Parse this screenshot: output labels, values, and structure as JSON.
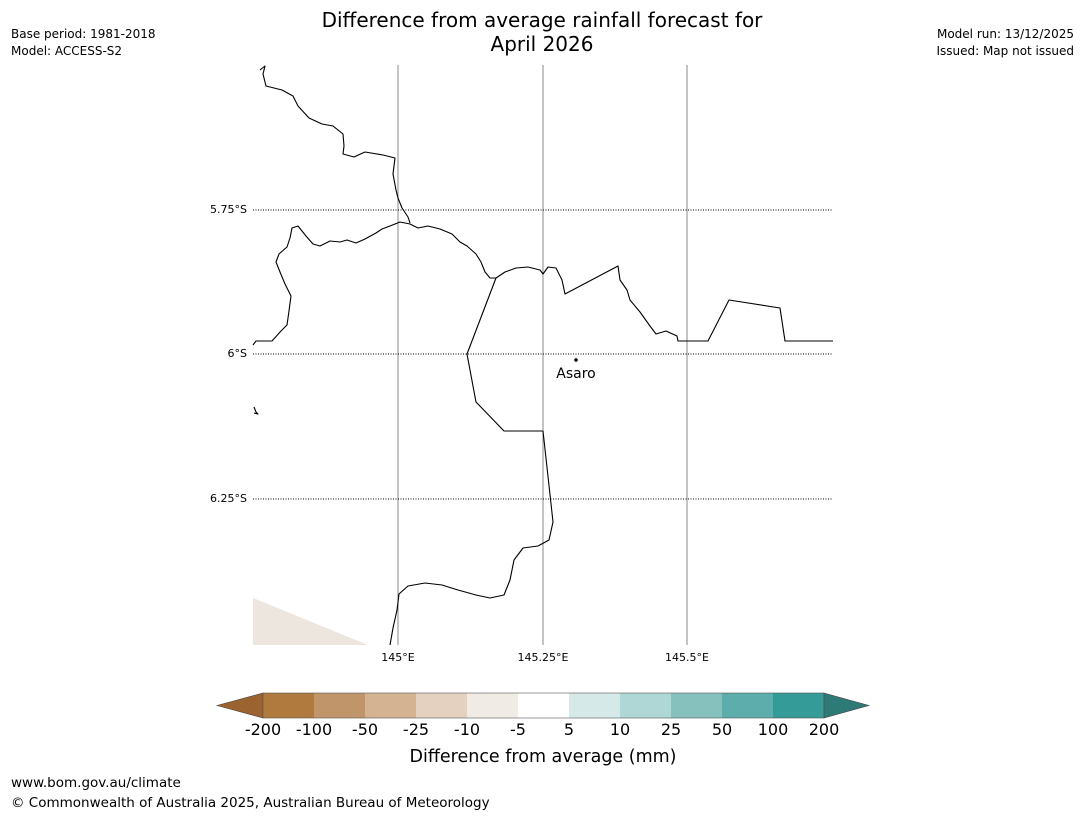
{
  "header": {
    "title_line1": "Difference from average rainfall forecast for",
    "title_line2": "April 2026",
    "base_period": "Base period: 1981-2018",
    "model": "Model: ACCESS-S2",
    "model_run": "Model run: 13/12/2025",
    "issued": "Issued: Map not issued"
  },
  "map": {
    "lat_labels": [
      "5.75°S",
      "6°S",
      "6.25°S"
    ],
    "lon_labels": [
      "145°E",
      "145.25°E",
      "145.5°E"
    ],
    "place": "Asaro",
    "land_fill_color": "#ede6df"
  },
  "colorbar": {
    "title": "Difference from average (mm)",
    "tick_labels": [
      "-200",
      "-100",
      "-50",
      "-25",
      "-10",
      "-5",
      "5",
      "10",
      "25",
      "50",
      "100",
      "200"
    ],
    "colors": [
      "#9b6330",
      "#b07a3e",
      "#c1956a",
      "#d4b393",
      "#e5d1bf",
      "#f1ebe6",
      "#ffffff",
      "#d6e9e9",
      "#afd7d5",
      "#86c1bd",
      "#5cadab",
      "#349b98",
      "#2e7a77"
    ]
  },
  "footer": {
    "url": "www.bom.gov.au/climate",
    "copyright": "© Commonwealth of Australia 2025, Australian Bureau of Meteorology"
  }
}
